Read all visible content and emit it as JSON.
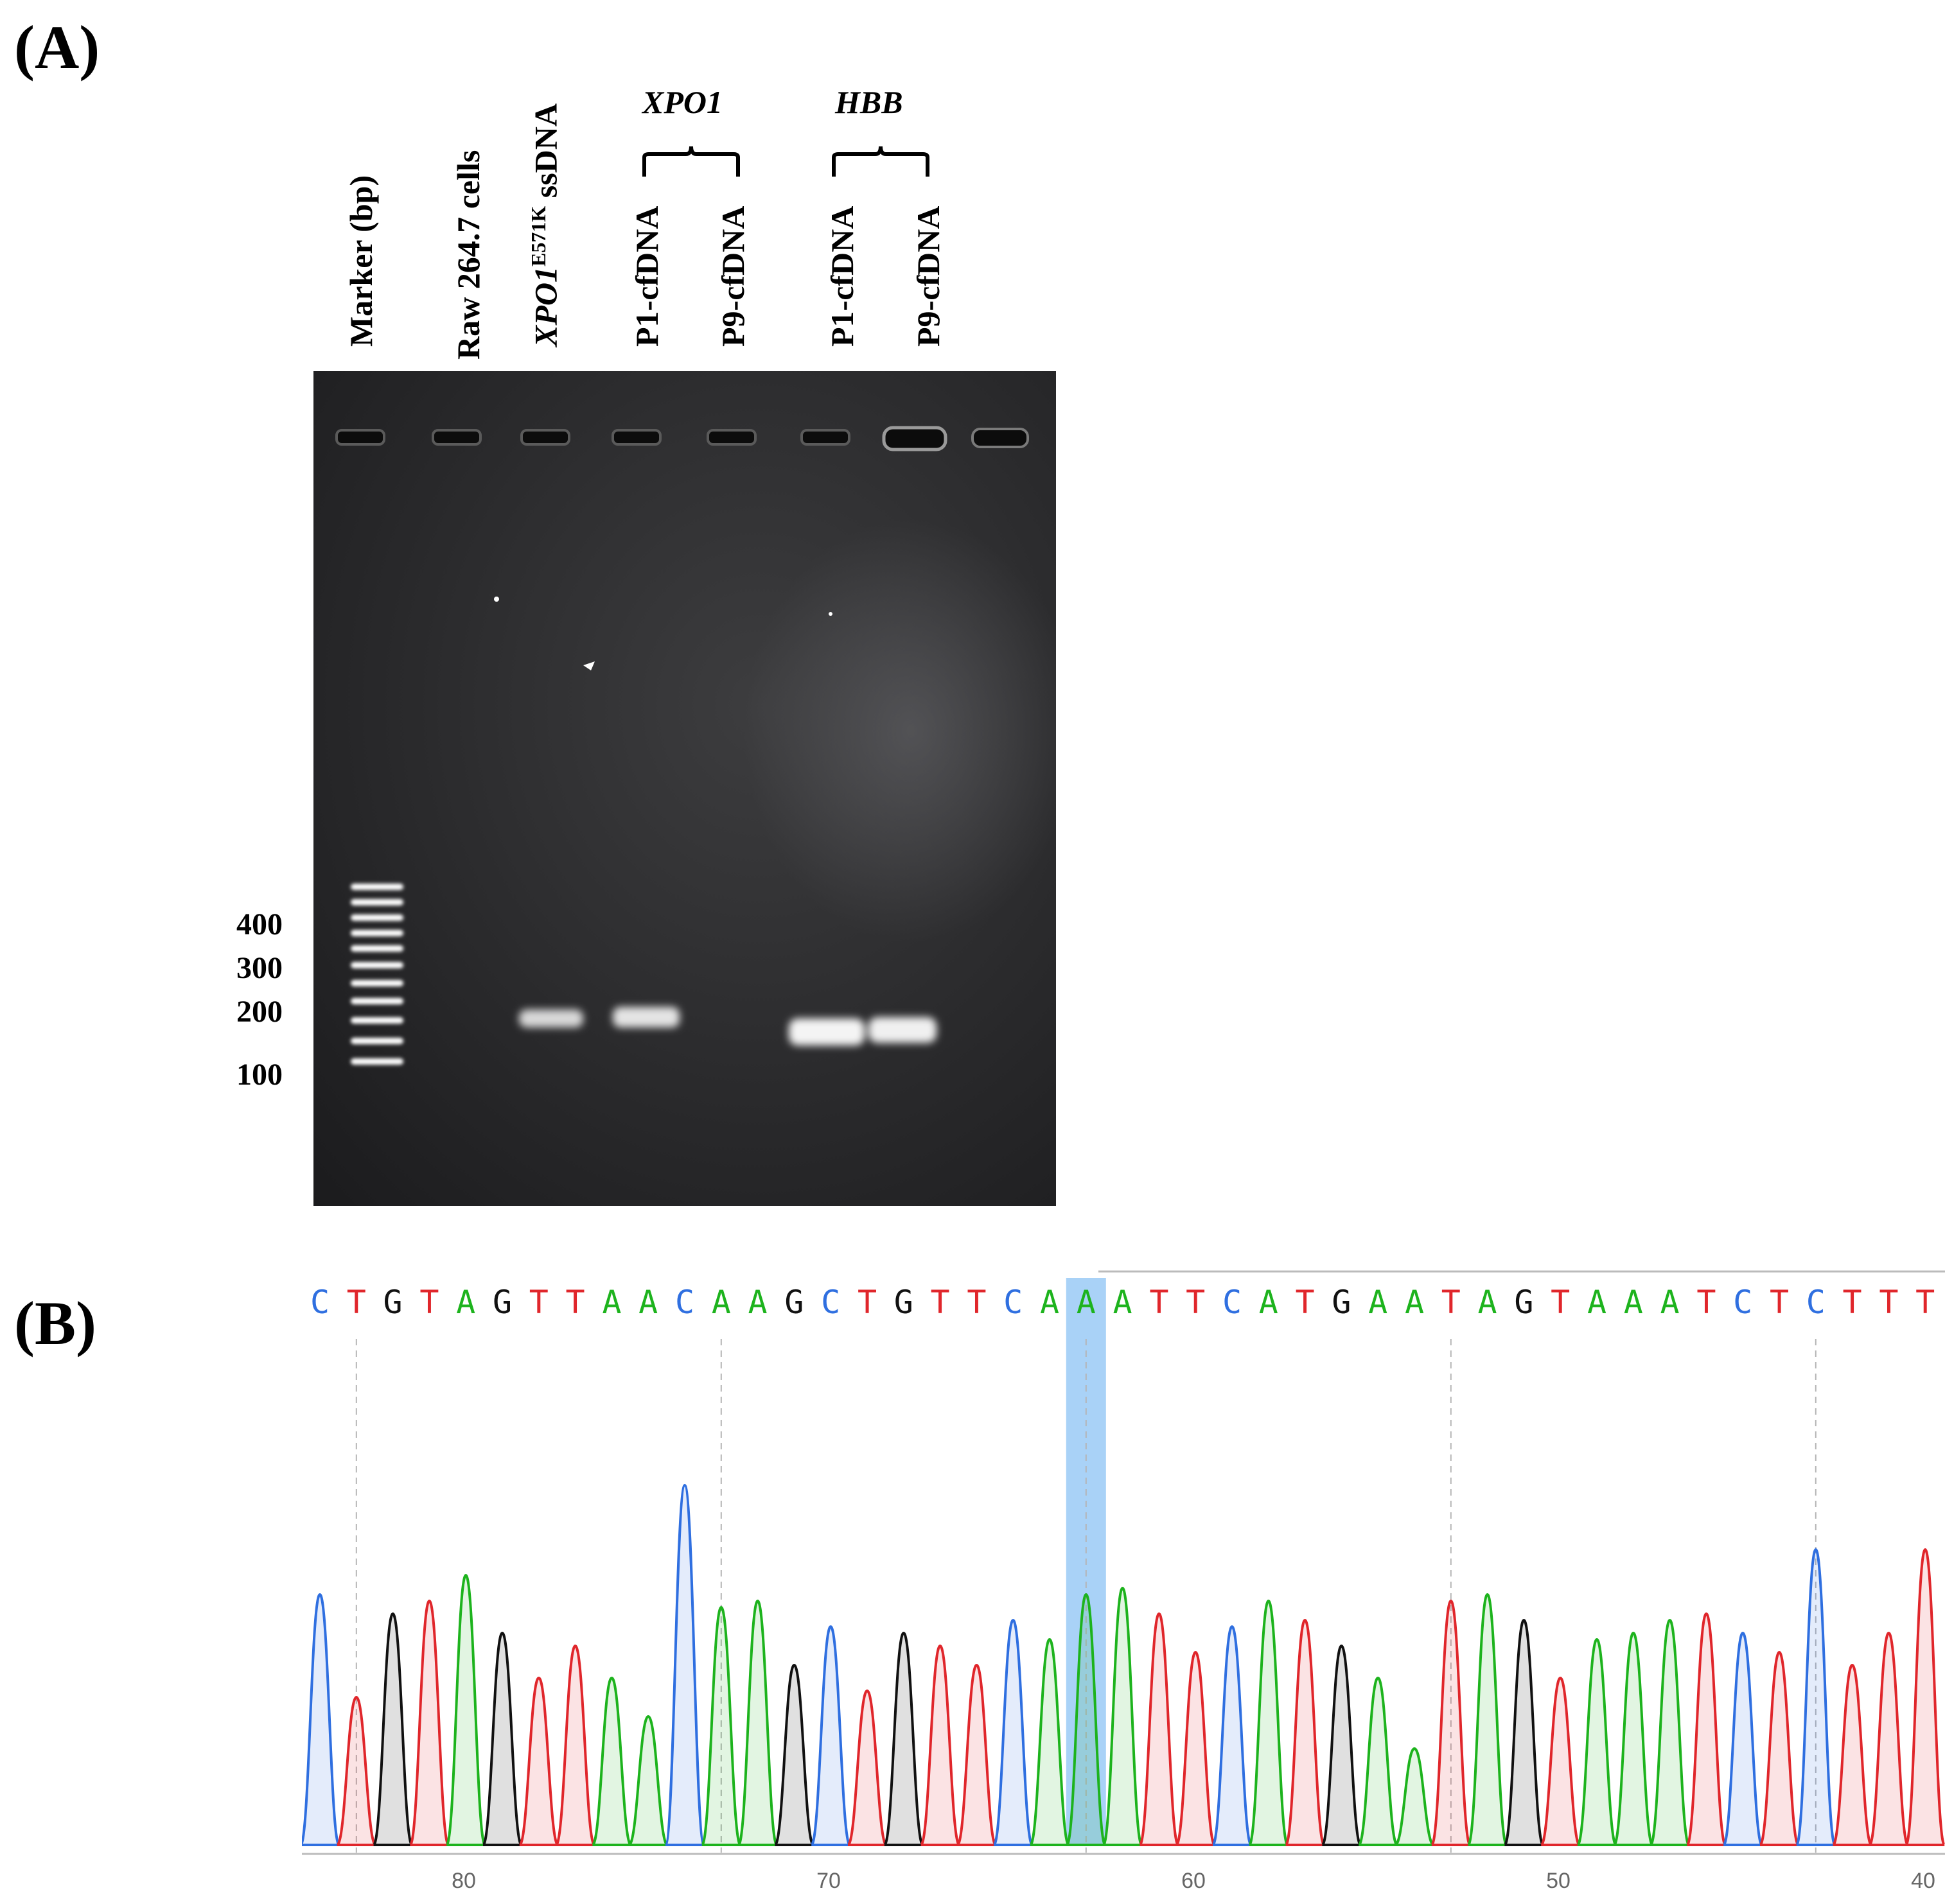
{
  "panel_a": {
    "label": "(A)",
    "lanes": [
      {
        "text": "Marker (bp)"
      },
      {
        "text": "Raw 264.7 cells"
      },
      {
        "gene": "XPO1",
        "superscript": "E571K",
        "suffix": " ssDNA"
      },
      {
        "text": "P1-cfDNA"
      },
      {
        "text": "P9-cfDNA"
      },
      {
        "text": "P1-cfDNA"
      },
      {
        "text": "P9-cfDNA"
      }
    ],
    "groups": [
      {
        "label": "XPO1",
        "lanes": [
          3,
          4
        ]
      },
      {
        "label": "HBB",
        "lanes": [
          5,
          6
        ]
      }
    ],
    "marker_bp": [
      "400",
      "300",
      "200",
      "100"
    ],
    "band_lanes": [
      2,
      3,
      5,
      6
    ]
  },
  "panel_b": {
    "label": "(B)",
    "sequence": "CTGTAGTTAACAAGCTGTTCAAATTCATGAATAGTAAATCTCTTT",
    "highlight_index": 21,
    "position_ticks": [
      "80",
      "70",
      "60",
      "50",
      "40"
    ],
    "base_colors": {
      "A": "#1db31d",
      "C": "#2f6fe0",
      "G": "#111111",
      "T": "#e0262b"
    },
    "highlight_color": "#a9d2f7"
  }
}
